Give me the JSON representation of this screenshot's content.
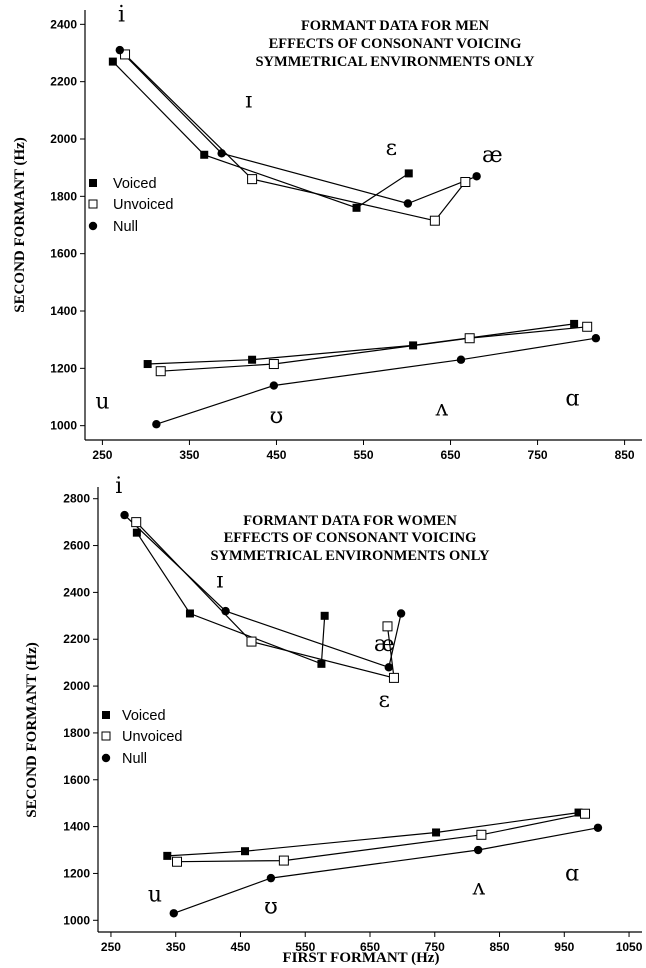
{
  "colors": {
    "ink": "#000000",
    "background": "#ffffff"
  },
  "chart_data": [
    {
      "type": "scatter",
      "panel": "men",
      "title_lines": [
        "FORMANT DATA FOR MEN",
        "EFFECTS OF CONSONANT VOICING",
        "SYMMETRICAL ENVIRONMENTS ONLY"
      ],
      "xlabel": "",
      "ylabel": "SECOND FORMANT (Hz)",
      "xlim": [
        230,
        870
      ],
      "ylim": [
        950,
        2450
      ],
      "xticks": [
        250,
        350,
        450,
        550,
        650,
        750,
        850
      ],
      "yticks": [
        1000,
        1200,
        1400,
        1600,
        1800,
        2000,
        2200,
        2400
      ],
      "legend": {
        "position": "left-middle",
        "entries": [
          "Voiced",
          "Unvoiced",
          "Null"
        ]
      },
      "vowel_labels": [
        {
          "text": "i",
          "x": 272,
          "y": 2410
        },
        {
          "text": "ɪ",
          "x": 418,
          "y": 2110
        },
        {
          "text": "ɛ",
          "x": 582,
          "y": 1945
        },
        {
          "text": "æ",
          "x": 698,
          "y": 1920
        },
        {
          "text": "u",
          "x": 250,
          "y": 1060
        },
        {
          "text": "ʊ",
          "x": 450,
          "y": 1010
        },
        {
          "text": "ʌ",
          "x": 640,
          "y": 1035
        },
        {
          "text": "ɑ",
          "x": 790,
          "y": 1070
        }
      ],
      "series": [
        {
          "name": "Voiced",
          "marker": "filled-square",
          "groups": [
            {
              "x": [
                262,
                367,
                542,
                602
              ],
              "y": [
                2270,
                1945,
                1760,
                1880
              ]
            },
            {
              "x": [
                302,
                422,
                607,
                792
              ],
              "y": [
                1215,
                1230,
                1280,
                1355
              ]
            }
          ]
        },
        {
          "name": "Unvoiced",
          "marker": "open-square",
          "groups": [
            {
              "x": [
                276,
                422,
                632,
                667
              ],
              "y": [
                2295,
                1860,
                1715,
                1850
              ]
            },
            {
              "x": [
                317,
                447,
                672,
                807
              ],
              "y": [
                1190,
                1215,
                1305,
                1345
              ]
            }
          ]
        },
        {
          "name": "Null",
          "marker": "filled-circle",
          "groups": [
            {
              "x": [
                270,
                387,
                601,
                680
              ],
              "y": [
                2310,
                1950,
                1775,
                1870
              ]
            },
            {
              "x": [
                312,
                447,
                662,
                817
              ],
              "y": [
                1005,
                1140,
                1230,
                1305
              ]
            }
          ]
        }
      ]
    },
    {
      "type": "scatter",
      "panel": "women",
      "title_lines": [
        "FORMANT DATA FOR WOMEN",
        "EFFECTS OF CONSONANT VOICING",
        "SYMMETRICAL ENVIRONMENTS ONLY"
      ],
      "xlabel": "FIRST FORMANT (Hz)",
      "ylabel": "SECOND FORMANT (Hz)",
      "xlim": [
        230,
        1070
      ],
      "ylim": [
        950,
        2850
      ],
      "xticks": [
        250,
        350,
        450,
        550,
        650,
        750,
        850,
        950,
        1050
      ],
      "yticks": [
        1000,
        1200,
        1400,
        1600,
        1800,
        2000,
        2200,
        2400,
        2600,
        2800
      ],
      "legend": {
        "position": "left-middle",
        "entries": [
          "Voiced",
          "Unvoiced",
          "Null"
        ]
      },
      "vowel_labels": [
        {
          "text": "i",
          "x": 262,
          "y": 2825
        },
        {
          "text": "ɪ",
          "x": 418,
          "y": 2420
        },
        {
          "text": "æ",
          "x": 672,
          "y": 2150
        },
        {
          "text": "ɛ",
          "x": 672,
          "y": 1910
        },
        {
          "text": "u",
          "x": 318,
          "y": 1080
        },
        {
          "text": "ʊ",
          "x": 497,
          "y": 1030
        },
        {
          "text": "ʌ",
          "x": 818,
          "y": 1110
        },
        {
          "text": "ɑ",
          "x": 962,
          "y": 1170
        }
      ],
      "series": [
        {
          "name": "Voiced",
          "marker": "filled-square",
          "groups": [
            {
              "x": [
                290,
                372,
                575,
                580
              ],
              "y": [
                2655,
                2310,
                2095,
                2300
              ]
            },
            {
              "x": [
                337,
                457,
                752,
                972
              ],
              "y": [
                1275,
                1295,
                1375,
                1460
              ]
            }
          ]
        },
        {
          "name": "Unvoiced",
          "marker": "open-square",
          "groups": [
            {
              "x": [
                289,
                467,
                687,
                677
              ],
              "y": [
                2700,
                2190,
                2035,
                2255
              ]
            },
            {
              "x": [
                352,
                517,
                822,
                982
              ],
              "y": [
                1250,
                1255,
                1365,
                1455
              ]
            }
          ]
        },
        {
          "name": "Null",
          "marker": "filled-circle",
          "groups": [
            {
              "x": [
                271,
                427,
                679,
                698
              ],
              "y": [
                2730,
                2320,
                2080,
                2310
              ]
            },
            {
              "x": [
                347,
                497,
                817,
                1002
              ],
              "y": [
                1030,
                1180,
                1300,
                1395
              ]
            }
          ]
        }
      ]
    }
  ]
}
